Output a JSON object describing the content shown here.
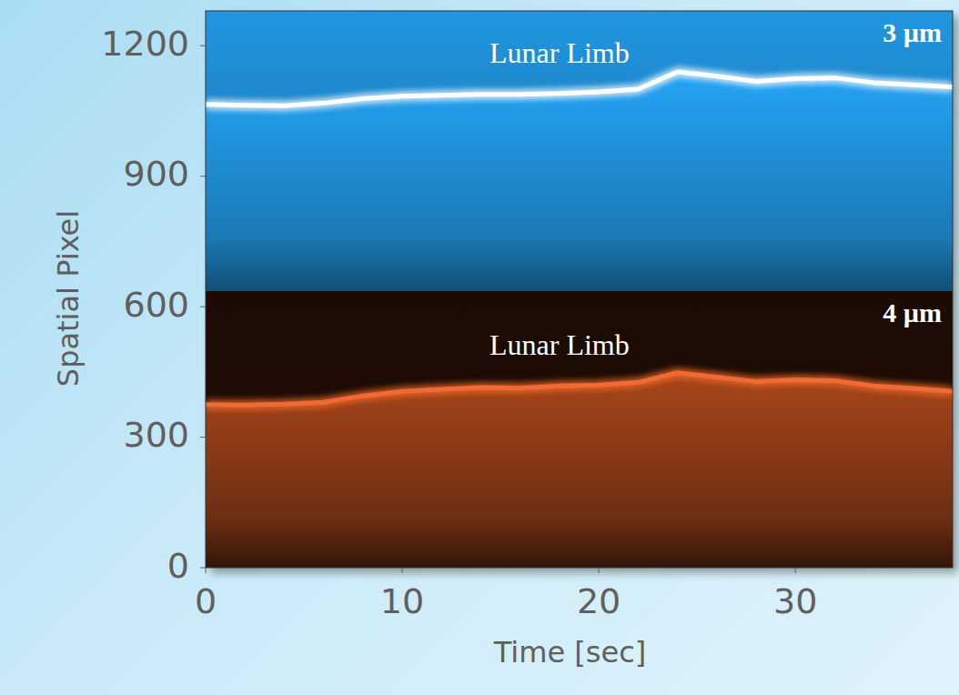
{
  "chart_data": {
    "type": "line",
    "x": [
      0,
      2,
      4,
      6,
      8,
      10,
      12,
      14,
      16,
      18,
      20,
      22,
      24,
      26,
      28,
      30,
      32,
      34,
      36,
      38
    ],
    "xlim": [
      0,
      38
    ],
    "xticks": [
      0,
      10,
      20,
      30
    ],
    "ylim": [
      0,
      1280
    ],
    "yticks": [
      0,
      300,
      600,
      900,
      1200
    ],
    "x_label": "Time [sec]",
    "y_label": "Spatial Pixel",
    "bands": [
      {
        "label": "3 µm",
        "range": [
          636,
          1280
        ],
        "color": "#1f8fd6"
      },
      {
        "label": "4 µm",
        "range": [
          0,
          636
        ],
        "color": "#a8461a"
      }
    ],
    "series": [
      {
        "name": "Lunar Limb",
        "color": "#ffffff",
        "values": [
          1065,
          1063,
          1062,
          1068,
          1078,
          1084,
          1086,
          1088,
          1088,
          1090,
          1094,
          1100,
          1140,
          1130,
          1118,
          1124,
          1126,
          1115,
          1110,
          1105
        ]
      },
      {
        "name": "Lunar Limb",
        "color": "#f06a30",
        "values": [
          375,
          374,
          376,
          380,
          395,
          405,
          410,
          414,
          413,
          418,
          420,
          426,
          448,
          438,
          428,
          432,
          430,
          418,
          412,
          405
        ]
      }
    ]
  }
}
